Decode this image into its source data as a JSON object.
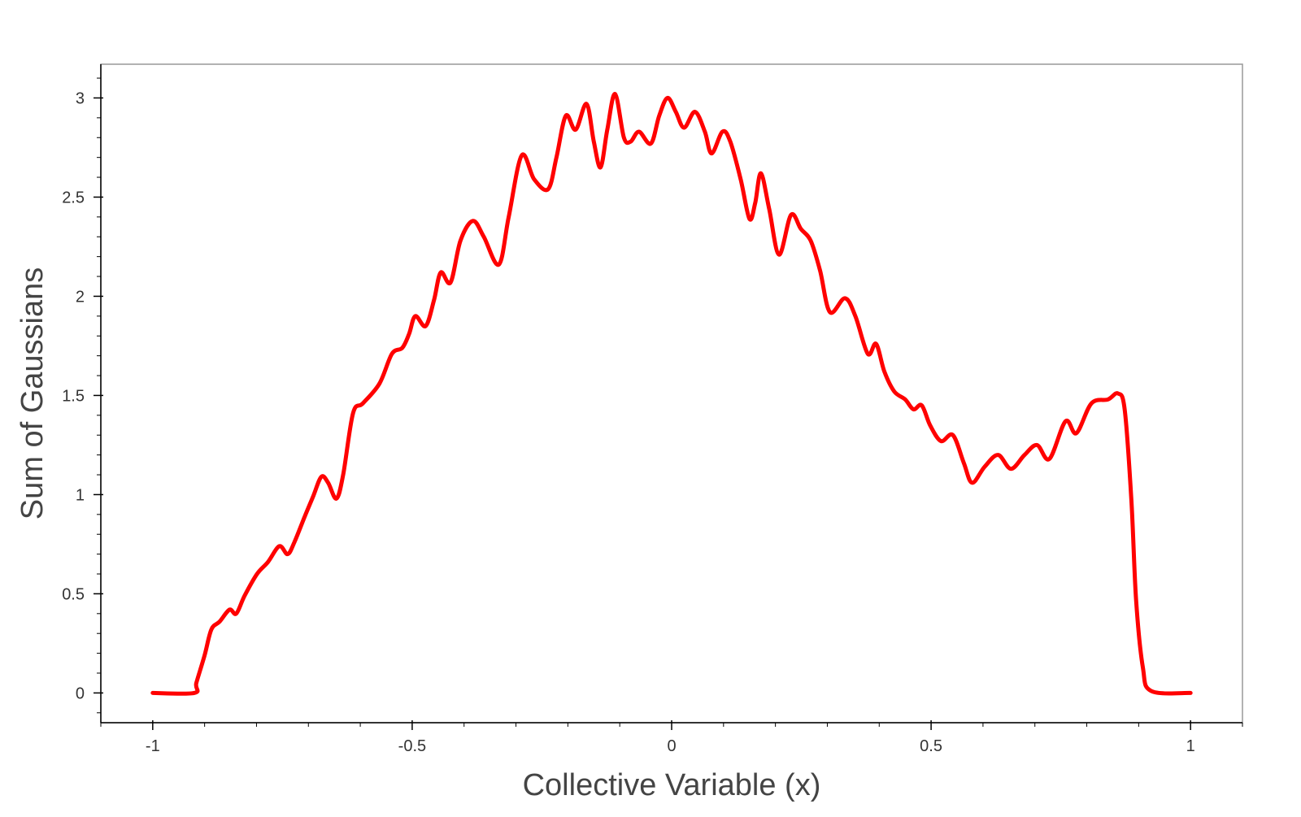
{
  "chart_data": {
    "type": "line",
    "x_label": "Collective Variable (x)",
    "y_label": "Sum of Gaussians",
    "color": "#ff0000",
    "xlim": [
      -1.1,
      1.1
    ],
    "ylim": [
      -0.15,
      3.17
    ],
    "xticks": [
      -1,
      -0.5,
      0,
      0.5,
      1
    ],
    "yticks": [
      0,
      0.5,
      1,
      1.5,
      2,
      2.5,
      3
    ],
    "xminorticks": [
      -1.1,
      -0.9,
      -0.8,
      -0.7,
      -0.6,
      -0.4,
      -0.3,
      -0.2,
      -0.1,
      0.1,
      0.2,
      0.3,
      0.4,
      0.6,
      0.7,
      0.8,
      0.9,
      1.1
    ],
    "yminorticks": [
      -0.1,
      0.1,
      0.2,
      0.3,
      0.4,
      0.6,
      0.7,
      0.8,
      0.9,
      1.1,
      1.2,
      1.3,
      1.4,
      1.6,
      1.7,
      1.8,
      1.9,
      2.1,
      2.2,
      2.3,
      2.4,
      2.6,
      2.7,
      2.8,
      2.9,
      3.1
    ],
    "x": [
      -1,
      -0.92,
      -0.916,
      -0.9,
      -0.887,
      -0.871,
      -0.852,
      -0.839,
      -0.823,
      -0.799,
      -0.778,
      -0.756,
      -0.74,
      -0.727,
      -0.707,
      -0.691,
      -0.675,
      -0.662,
      -0.646,
      -0.633,
      -0.614,
      -0.595,
      -0.563,
      -0.539,
      -0.519,
      -0.506,
      -0.494,
      -0.474,
      -0.458,
      -0.445,
      -0.426,
      -0.407,
      -0.383,
      -0.362,
      -0.333,
      -0.314,
      -0.289,
      -0.265,
      -0.238,
      -0.222,
      -0.204,
      -0.185,
      -0.164,
      -0.15,
      -0.137,
      -0.124,
      -0.109,
      -0.092,
      -0.079,
      -0.063,
      -0.04,
      -0.024,
      -0.008,
      0.008,
      0.024,
      0.045,
      0.064,
      0.077,
      0.098,
      0.113,
      0.133,
      0.15,
      0.161,
      0.172,
      0.188,
      0.207,
      0.23,
      0.249,
      0.268,
      0.286,
      0.305,
      0.334,
      0.354,
      0.378,
      0.394,
      0.41,
      0.429,
      0.45,
      0.466,
      0.482,
      0.498,
      0.519,
      0.542,
      0.563,
      0.579,
      0.603,
      0.629,
      0.654,
      0.68,
      0.704,
      0.728,
      0.759,
      0.78,
      0.809,
      0.841,
      0.86,
      0.873,
      0.886,
      0.895,
      0.908,
      0.924,
      1
    ],
    "values": [
      0,
      0,
      0.05,
      0.19,
      0.32,
      0.36,
      0.42,
      0.4,
      0.49,
      0.6,
      0.66,
      0.74,
      0.7,
      0.76,
      0.89,
      0.99,
      1.09,
      1.06,
      0.98,
      1.1,
      1.41,
      1.46,
      1.56,
      1.71,
      1.74,
      1.81,
      1.9,
      1.85,
      1.98,
      2.12,
      2.07,
      2.28,
      2.38,
      2.3,
      2.16,
      2.4,
      2.71,
      2.59,
      2.54,
      2.7,
      2.91,
      2.84,
      2.97,
      2.78,
      2.65,
      2.84,
      3.02,
      2.8,
      2.78,
      2.83,
      2.77,
      2.91,
      3,
      2.93,
      2.85,
      2.93,
      2.83,
      2.72,
      2.83,
      2.78,
      2.59,
      2.39,
      2.47,
      2.62,
      2.44,
      2.21,
      2.41,
      2.34,
      2.28,
      2.13,
      1.92,
      1.99,
      1.9,
      1.71,
      1.76,
      1.62,
      1.52,
      1.48,
      1.43,
      1.45,
      1.35,
      1.27,
      1.3,
      1.16,
      1.06,
      1.14,
      1.2,
      1.13,
      1.2,
      1.25,
      1.18,
      1.37,
      1.31,
      1.46,
      1.48,
      1.51,
      1.43,
      0.97,
      0.47,
      0.13,
      0.01,
      0
    ]
  }
}
